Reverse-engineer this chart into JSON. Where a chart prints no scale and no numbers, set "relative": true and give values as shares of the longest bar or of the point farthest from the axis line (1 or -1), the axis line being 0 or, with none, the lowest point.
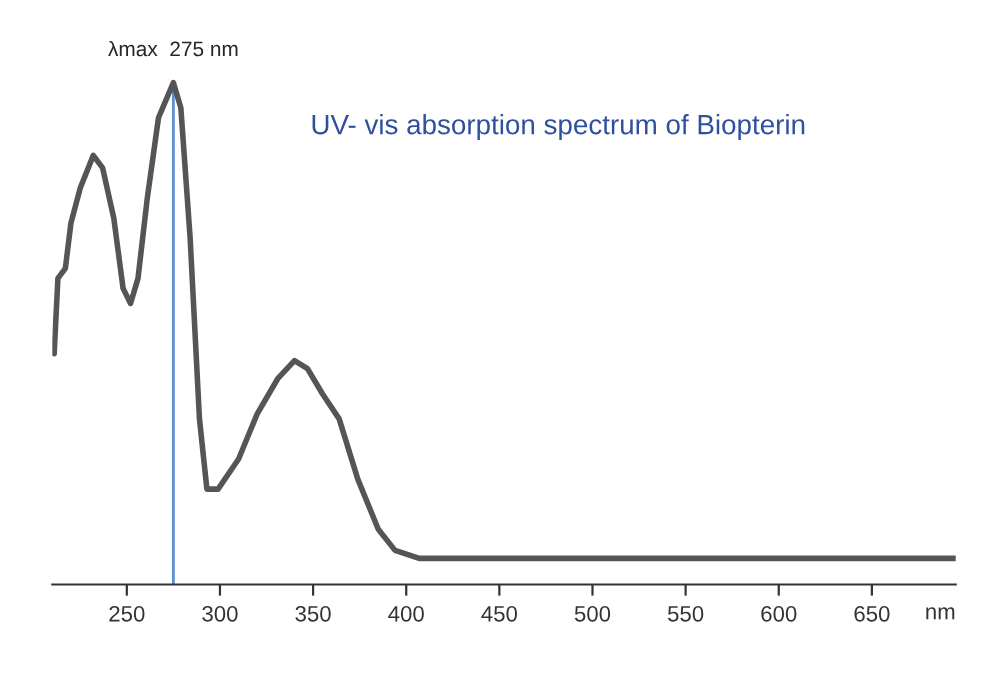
{
  "chart_data": {
    "type": "line",
    "relative": true,
    "title": "UV- vis absorption spectrum of Biopterin",
    "xlabel": "nm",
    "annotations": [
      {
        "text": "λmax  275 nm",
        "x": 275,
        "y": 1
      }
    ],
    "xlim": [
      210,
      695
    ],
    "xticks": [
      250,
      300,
      350,
      400,
      450,
      500,
      550,
      600,
      650
    ],
    "grid": false,
    "legend": false,
    "ref_lines": [
      {
        "axis": "x",
        "value": 275,
        "label": null,
        "color": "#5b8fd6",
        "line_style": "solid"
      }
    ],
    "series": [
      {
        "color": "#555555",
        "x": [
          211,
          213,
          217,
          220,
          225,
          232,
          237,
          243,
          248,
          252,
          256,
          261,
          267,
          275,
          279,
          284,
          289,
          293,
          299,
          310,
          320,
          331,
          340,
          347,
          355,
          364,
          374,
          385,
          394,
          407,
          695
        ],
        "values": [
          0.46,
          0.61,
          0.63,
          0.72,
          0.79,
          0.855,
          0.83,
          0.73,
          0.59,
          0.56,
          0.61,
          0.77,
          0.93,
          1.0,
          0.95,
          0.69,
          0.33,
          0.19,
          0.19,
          0.25,
          0.34,
          0.41,
          0.446,
          0.43,
          0.38,
          0.33,
          0.21,
          0.11,
          0.068,
          0.052,
          0.052
        ]
      }
    ]
  }
}
